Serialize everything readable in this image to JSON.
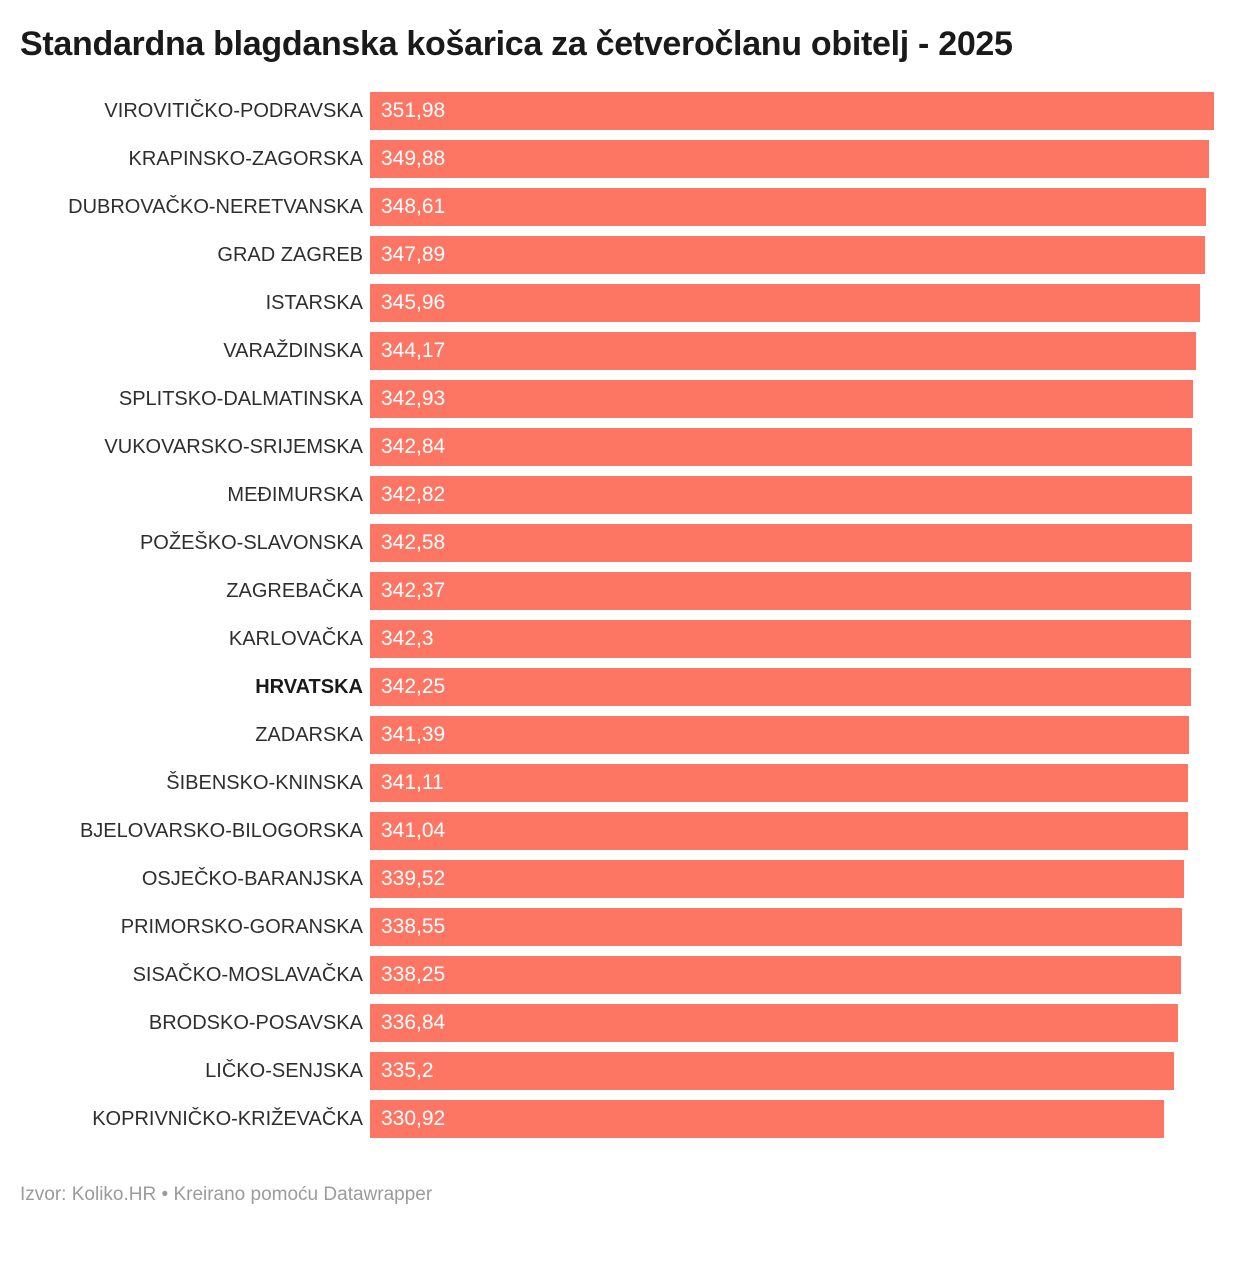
{
  "title": "Standardna blagdanska košarica za četveročlanu obitelj - 2025",
  "footer": {
    "source_label": "Izvor:",
    "source_name": "Koliko.HR",
    "separator": "•",
    "credit_text": "Kreirano pomoću",
    "credit_name": "Datawrapper"
  },
  "chart_data": {
    "type": "bar",
    "orientation": "horizontal",
    "title": "Standardna blagdanska košarica za četveročlanu obitelj - 2025",
    "categories": [
      "VIROVITIČKO-PODRAVSKA",
      "KRAPINSKO-ZAGORSKA",
      "DUBROVAČKO-NERETVANSKA",
      "GRAD ZAGREB",
      "ISTARSKA",
      "VARAŽDINSKA",
      "SPLITSKO-DALMATINSKA",
      "VUKOVARSKO-SRIJEMSKA",
      "MEĐIMURSKA",
      "POŽEŠKO-SLAVONSKA",
      "ZAGREBAČKA",
      "KARLOVAČKA",
      "HRVATSKA",
      "ZADARSKA",
      "ŠIBENSKO-KNINSKA",
      "BJELOVARSKO-BILOGORSKA",
      "OSJEČKO-BARANJSKA",
      "PRIMORSKO-GORANSKA",
      "SISAČKO-MOSLAVAČKA",
      "BRODSKO-POSAVSKA",
      "LIČKO-SENJSKA",
      "KOPRIVNIČKO-KRIŽEVAČKA"
    ],
    "values": [
      351.98,
      349.88,
      348.61,
      347.89,
      345.96,
      344.17,
      342.93,
      342.84,
      342.82,
      342.58,
      342.37,
      342.3,
      342.25,
      341.39,
      341.11,
      341.04,
      339.52,
      338.55,
      338.25,
      336.84,
      335.2,
      330.92
    ],
    "value_labels": [
      "351,98",
      "349,88",
      "348,61",
      "347,89",
      "345,96",
      "344,17",
      "342,93",
      "342,84",
      "342,82",
      "342,58",
      "342,37",
      "342,3",
      "342,25",
      "341,39",
      "341,11",
      "341,04",
      "339,52",
      "338,55",
      "338,25",
      "336,84",
      "335,2",
      "330,92"
    ],
    "emphasized_category": "HRVATSKA",
    "axis_min": 0,
    "axis_max": 361,
    "grid": false,
    "legend": false,
    "bar_color": "#fd7664",
    "label_color": "#2e2e2e",
    "value_label_color": "#ffffff"
  }
}
